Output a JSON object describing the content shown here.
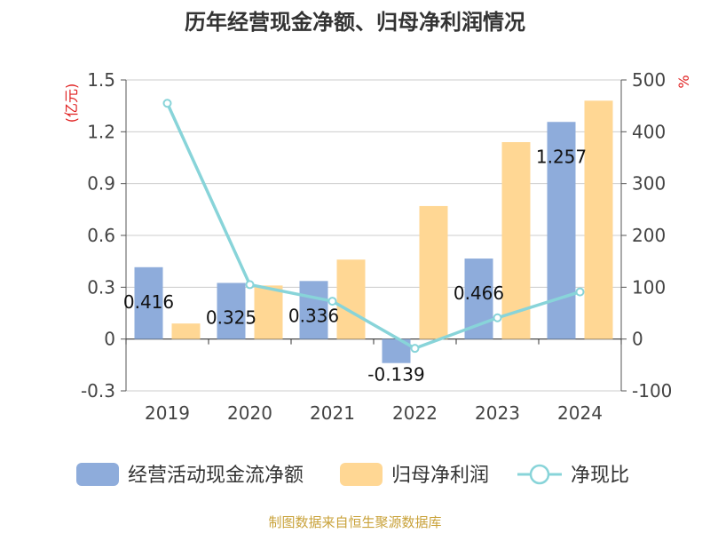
{
  "chart_data": {
    "type": "bar",
    "title": "历年经营现金净额、归母净利润情况",
    "categories": [
      "2019",
      "2020",
      "2021",
      "2022",
      "2023",
      "2024"
    ],
    "series": [
      {
        "name": "经营活动现金流净额",
        "kind": "bar",
        "axis": "left",
        "color": "#8eacdb",
        "values": [
          0.416,
          0.325,
          0.336,
          -0.139,
          0.466,
          1.257
        ],
        "labels": [
          "0.416",
          "0.325",
          "0.336",
          "-0.139",
          "0.466",
          "1.257"
        ]
      },
      {
        "name": "归母净利润",
        "kind": "bar",
        "axis": "left",
        "color": "#ffd794",
        "values": [
          0.09,
          0.31,
          0.46,
          0.77,
          1.14,
          1.38
        ]
      },
      {
        "name": "净现比",
        "kind": "line",
        "axis": "right",
        "color": "#88d4d9",
        "values": [
          455,
          105,
          73,
          -18,
          41,
          91
        ]
      }
    ],
    "y_left": {
      "unit": "(亿元)",
      "ylim": [
        -0.3,
        1.5
      ],
      "ticks": [
        -0.3,
        0,
        0.3,
        0.6,
        0.9,
        1.2,
        1.5
      ],
      "tick_labels": [
        "-0.3",
        "0",
        "0.3",
        "0.6",
        "0.9",
        "1.2",
        "1.5"
      ]
    },
    "y_right": {
      "unit": "%",
      "ylim": [
        -100,
        500
      ],
      "ticks": [
        -100,
        0,
        100,
        200,
        300,
        400,
        500
      ],
      "tick_labels": [
        "-100",
        "0",
        "100",
        "200",
        "300",
        "400",
        "500"
      ]
    },
    "grid": true,
    "legend_position": "bottom"
  },
  "source": "制图数据来自恒生聚源数据库"
}
